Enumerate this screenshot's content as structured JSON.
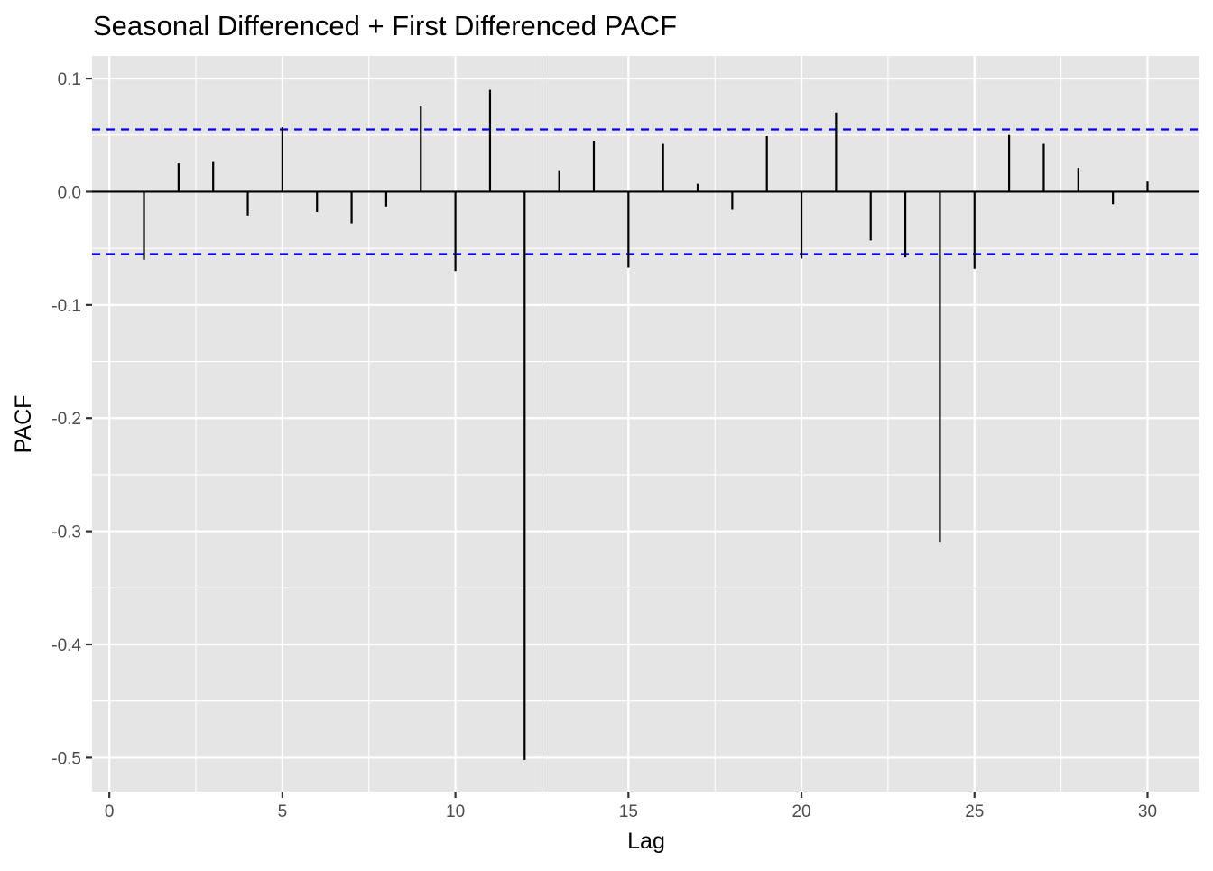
{
  "chart_data": {
    "type": "bar",
    "title": "Seasonal Differenced + First Differenced PACF",
    "xlabel": "Lag",
    "ylabel": "PACF",
    "xlim": [
      -0.5,
      31.5
    ],
    "ylim": [
      -0.53,
      0.12
    ],
    "x_ticks": [
      0,
      5,
      10,
      15,
      20,
      25,
      30
    ],
    "x_tick_labels": [
      "0",
      "5",
      "10",
      "15",
      "20",
      "25",
      "30"
    ],
    "y_ticks": [
      0.1,
      0.0,
      -0.1,
      -0.2,
      -0.3,
      -0.4,
      -0.5
    ],
    "y_tick_labels": [
      "0.1",
      "0.0",
      "-0.1",
      "-0.2",
      "-0.3",
      "-0.4",
      "-0.5"
    ],
    "lags": [
      1,
      2,
      3,
      4,
      5,
      6,
      7,
      8,
      9,
      10,
      11,
      12,
      13,
      14,
      15,
      16,
      17,
      18,
      19,
      20,
      21,
      22,
      23,
      24,
      25,
      26,
      27,
      28,
      29,
      30
    ],
    "values": [
      -0.06,
      0.025,
      0.027,
      -0.021,
      0.057,
      -0.018,
      -0.028,
      -0.013,
      0.076,
      -0.07,
      0.09,
      -0.502,
      0.019,
      0.045,
      -0.067,
      0.043,
      0.007,
      -0.016,
      0.049,
      -0.059,
      0.07,
      -0.043,
      -0.058,
      -0.31,
      -0.068,
      0.05,
      0.043,
      0.021,
      -0.011,
      0.009
    ],
    "confidence_bounds": [
      0.055,
      -0.055
    ],
    "grid": true,
    "colors": {
      "panel_background": "#e5e5e5",
      "grid_line": "#ffffff",
      "bar": "#000000",
      "confidence_line": "#0000ff"
    }
  }
}
